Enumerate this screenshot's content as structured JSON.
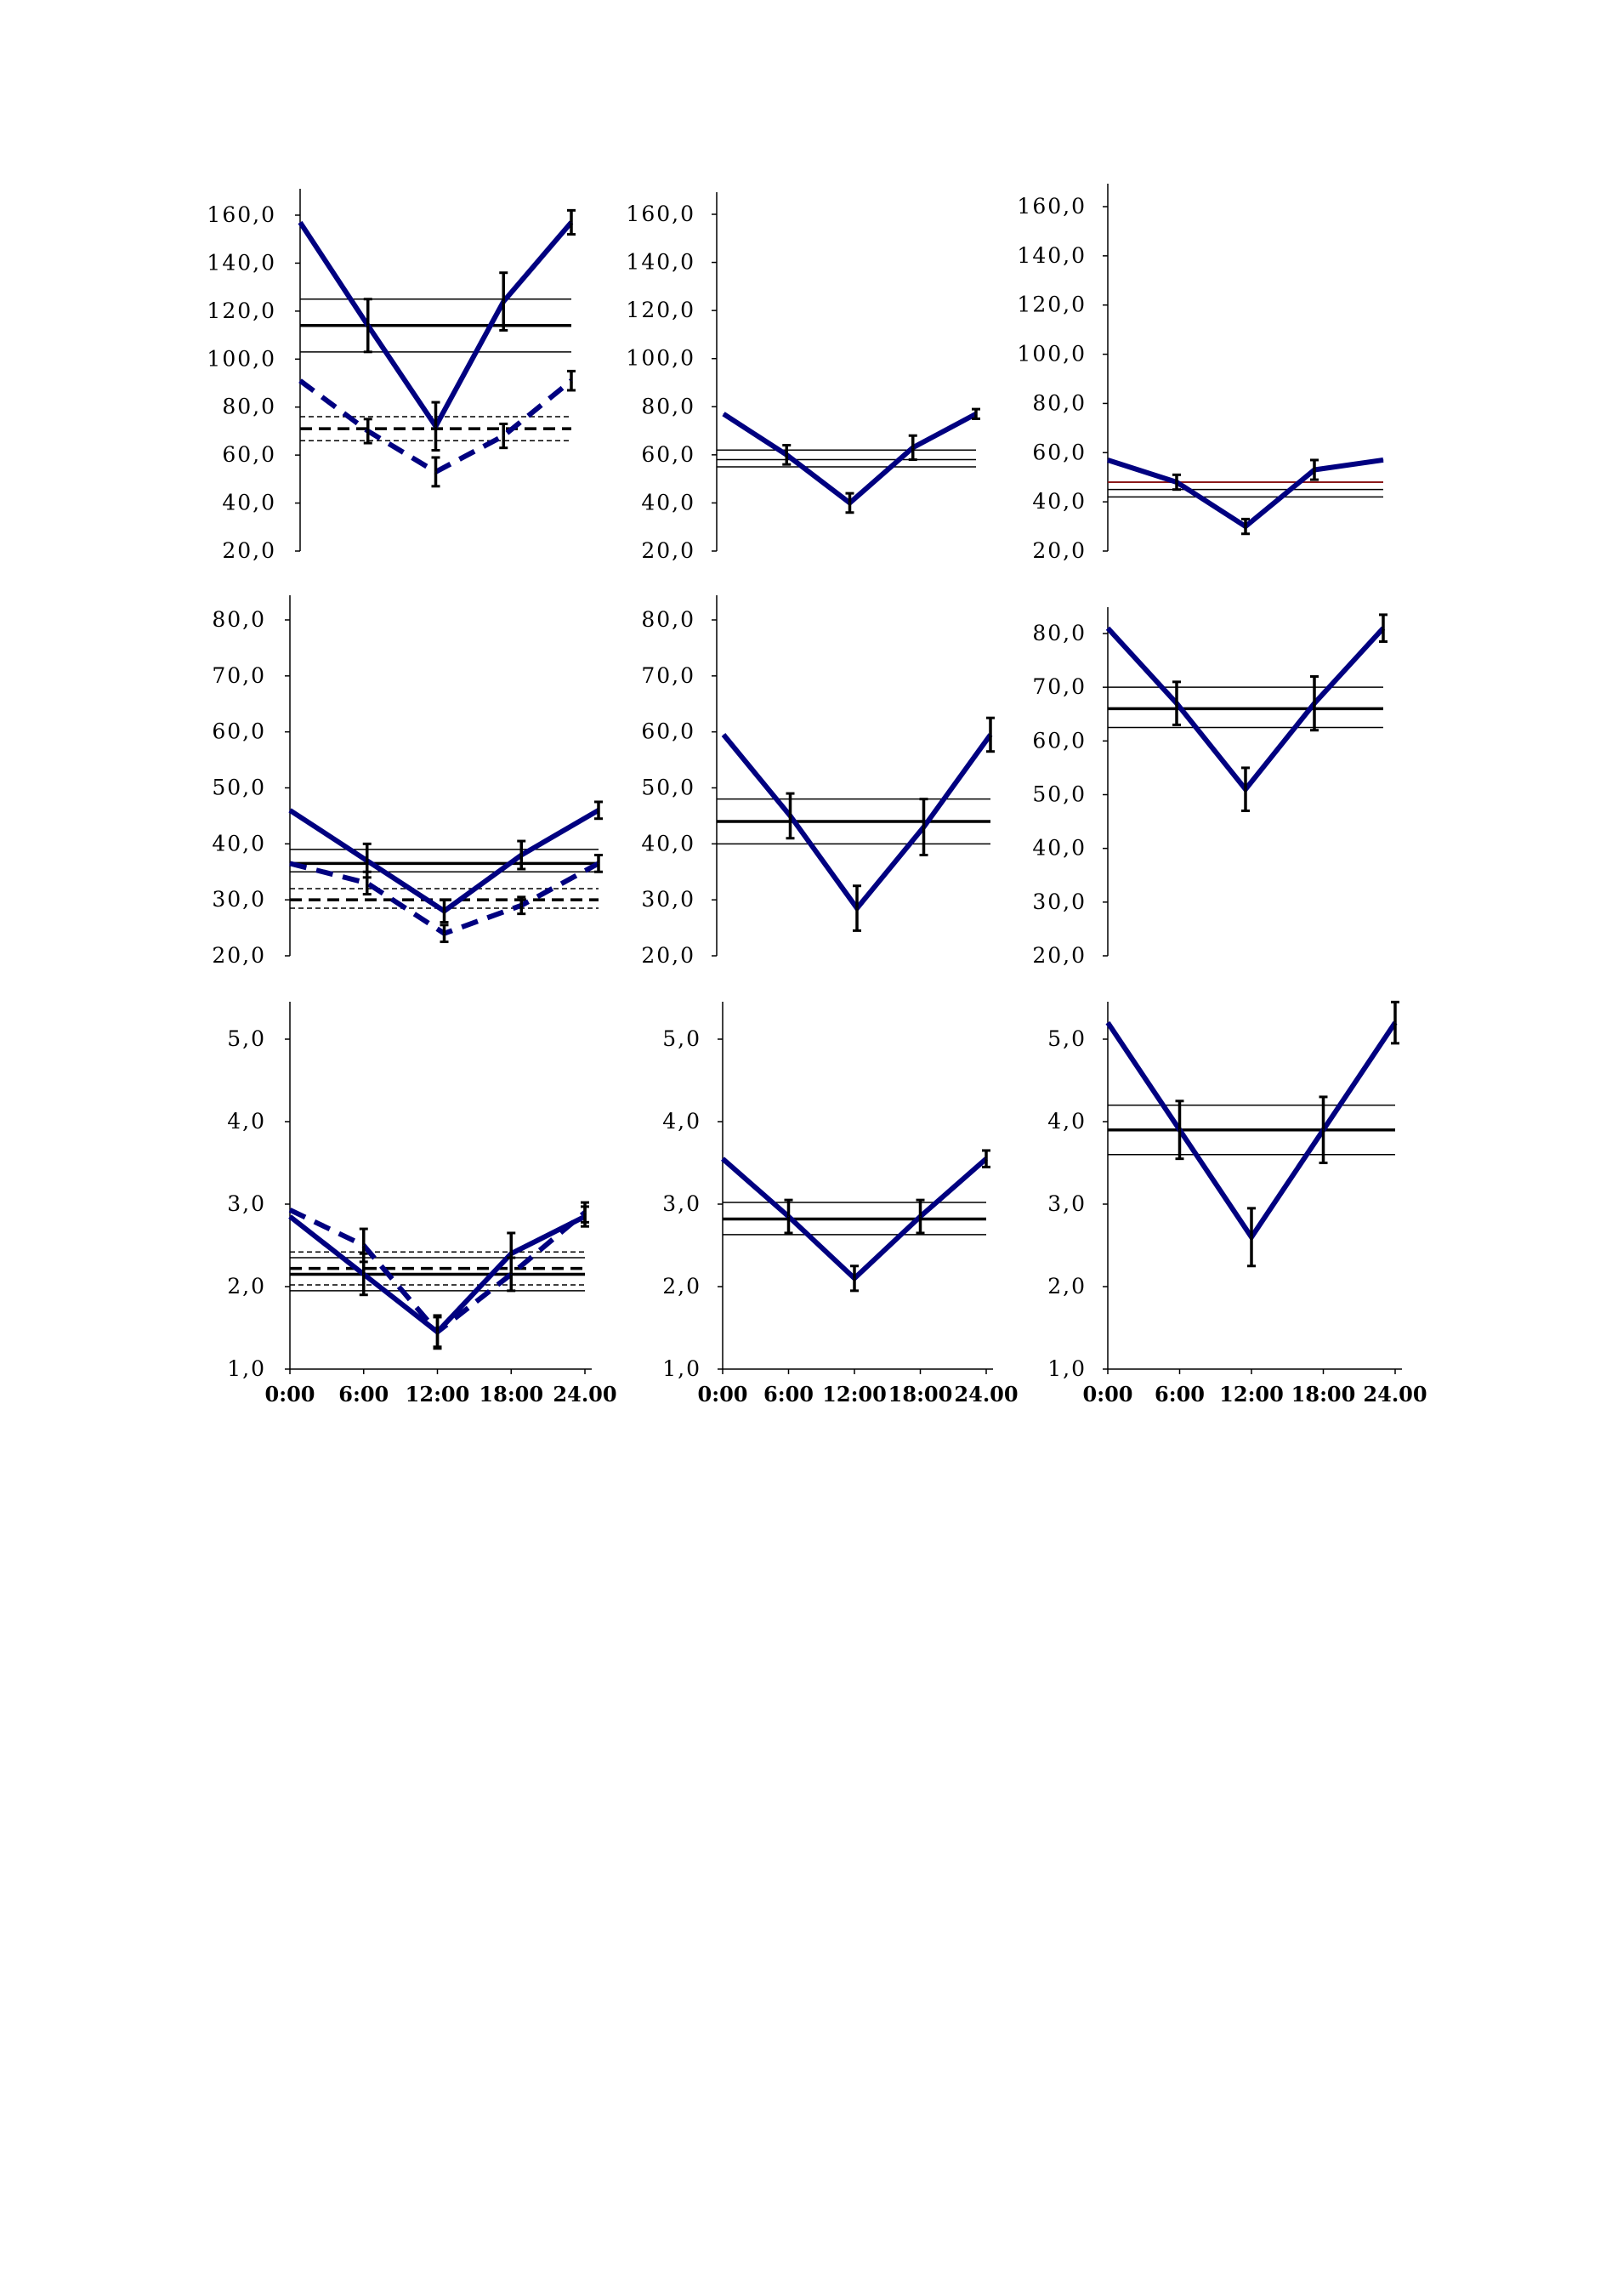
{
  "colors": {
    "series": "#000080",
    "axis": "#000000",
    "reference": "#000000",
    "reference_red": "#8b1a1a"
  },
  "chart_data": [
    {
      "type": "line",
      "x_ticks": [],
      "x": [
        0,
        6,
        12,
        18,
        24
      ],
      "ylim": [
        20,
        160
      ],
      "y_ticks": [
        "20,0",
        "40,0",
        "60,0",
        "80,0",
        "100,0",
        "120,0",
        "140,0",
        "160,0"
      ],
      "y_tick_values": [
        20,
        40,
        60,
        80,
        100,
        120,
        140,
        160
      ],
      "series": [
        {
          "style": "solid",
          "values": [
            157,
            114,
            72,
            124,
            157
          ],
          "errors": [
            0,
            11,
            10,
            12,
            5
          ]
        },
        {
          "style": "dashed",
          "values": [
            91,
            70,
            53,
            68,
            91
          ],
          "errors": [
            0,
            5,
            6,
            5,
            4
          ]
        }
      ],
      "reference_lines": [
        {
          "style": "bold",
          "y": 114
        },
        {
          "style": "thin",
          "y": 125
        },
        {
          "style": "thin",
          "y": 103
        },
        {
          "style": "bold-dashed",
          "y": 71
        },
        {
          "style": "thin-dashed",
          "y": 76
        },
        {
          "style": "thin-dashed",
          "y": 66
        }
      ]
    },
    {
      "type": "line",
      "x_ticks": [],
      "x": [
        0,
        6,
        12,
        18,
        24
      ],
      "ylim": [
        20,
        160
      ],
      "y_ticks": [
        "20,0",
        "40,0",
        "60,0",
        "80,0",
        "100,0",
        "120,0",
        "140,0",
        "160,0"
      ],
      "y_tick_values": [
        20,
        40,
        60,
        80,
        100,
        120,
        140,
        160
      ],
      "series": [
        {
          "style": "solid",
          "values": [
            77,
            60,
            40,
            63,
            77
          ],
          "errors": [
            0,
            4,
            4,
            5,
            2
          ]
        }
      ],
      "reference_lines": [
        {
          "style": "thin",
          "y": 62
        },
        {
          "style": "thin",
          "y": 58
        },
        {
          "style": "thin",
          "y": 55
        }
      ]
    },
    {
      "type": "line",
      "x_ticks": [],
      "x": [
        0,
        6,
        12,
        18,
        24
      ],
      "ylim": [
        20,
        160
      ],
      "y_ticks": [
        "20,0",
        "40,0",
        "60,0",
        "80,0",
        "100,0",
        "120,0",
        "140,0",
        "160,0"
      ],
      "y_tick_values": [
        20,
        40,
        60,
        80,
        100,
        120,
        140,
        160
      ],
      "series": [
        {
          "style": "solid",
          "values": [
            57,
            48,
            30,
            53,
            57
          ],
          "errors": [
            0,
            3,
            3,
            4,
            0
          ]
        }
      ],
      "reference_lines": [
        {
          "style": "thin-red",
          "y": 48
        },
        {
          "style": "thin",
          "y": 45
        },
        {
          "style": "thin",
          "y": 42
        }
      ]
    },
    {
      "type": "line",
      "x_ticks": [],
      "x": [
        0,
        6,
        12,
        18,
        24
      ],
      "ylim": [
        20,
        80
      ],
      "y_ticks": [
        "20,0",
        "30,0",
        "40,0",
        "50,0",
        "60,0",
        "70,0",
        "80,0"
      ],
      "y_tick_values": [
        20,
        30,
        40,
        50,
        60,
        70,
        80
      ],
      "series": [
        {
          "style": "solid",
          "values": [
            46,
            37,
            28,
            38,
            46
          ],
          "errors": [
            0,
            3,
            2,
            2.5,
            1.5
          ]
        },
        {
          "style": "dashed",
          "values": [
            36.5,
            33,
            24,
            29,
            36.5
          ],
          "errors": [
            0,
            2,
            1.5,
            1.5,
            1.5
          ]
        }
      ],
      "reference_lines": [
        {
          "style": "bold",
          "y": 36.5
        },
        {
          "style": "thin",
          "y": 39
        },
        {
          "style": "thin",
          "y": 35
        },
        {
          "style": "bold-dashed",
          "y": 30
        },
        {
          "style": "thin-dashed",
          "y": 32
        },
        {
          "style": "thin-dashed",
          "y": 28.5
        }
      ]
    },
    {
      "type": "line",
      "x_ticks": [],
      "x": [
        0,
        6,
        12,
        18,
        24
      ],
      "ylim": [
        20,
        80
      ],
      "y_ticks": [
        "20,0",
        "30,0",
        "40,0",
        "50,0",
        "60,0",
        "70,0",
        "80,0"
      ],
      "y_tick_values": [
        20,
        30,
        40,
        50,
        60,
        70,
        80
      ],
      "series": [
        {
          "style": "solid",
          "values": [
            59.5,
            45,
            28.5,
            43,
            59.5
          ],
          "errors": [
            0,
            4,
            4,
            5,
            3
          ]
        }
      ],
      "reference_lines": [
        {
          "style": "bold",
          "y": 44
        },
        {
          "style": "thin",
          "y": 48
        },
        {
          "style": "thin",
          "y": 40
        }
      ]
    },
    {
      "type": "line",
      "x_ticks": [],
      "x": [
        0,
        6,
        12,
        18,
        24
      ],
      "ylim": [
        20,
        80
      ],
      "y_ticks": [
        "20,0",
        "30,0",
        "40,0",
        "50,0",
        "60,0",
        "70,0",
        "80,0"
      ],
      "y_tick_values": [
        20,
        30,
        40,
        50,
        60,
        70,
        80
      ],
      "series": [
        {
          "style": "solid",
          "values": [
            81,
            67,
            51,
            67,
            81
          ],
          "errors": [
            0,
            4,
            4,
            5,
            2.5
          ]
        }
      ],
      "reference_lines": [
        {
          "style": "bold",
          "y": 66
        },
        {
          "style": "thin",
          "y": 70
        },
        {
          "style": "thin",
          "y": 62.5
        }
      ]
    },
    {
      "type": "line",
      "x_ticks": [
        "0:00",
        "6:00",
        "12:00",
        "18:00",
        "24.00"
      ],
      "x": [
        0,
        6,
        12,
        18,
        24
      ],
      "ylim": [
        1,
        5.5
      ],
      "y_ticks": [
        "1,0",
        "2,0",
        "3,0",
        "4,0",
        "5,0"
      ],
      "y_tick_values": [
        1,
        2,
        3,
        4,
        5
      ],
      "series": [
        {
          "style": "solid",
          "values": [
            2.85,
            2.15,
            1.45,
            2.4,
            2.85
          ],
          "errors": [
            0,
            0.25,
            0.2,
            0.25,
            0.12
          ]
        },
        {
          "style": "dashed",
          "values": [
            2.93,
            2.5,
            1.45,
            2.15,
            2.9
          ],
          "errors": [
            0,
            0.2,
            0.18,
            0.2,
            0.12
          ]
        }
      ],
      "reference_lines": [
        {
          "style": "bold",
          "y": 2.15
        },
        {
          "style": "thin",
          "y": 2.35
        },
        {
          "style": "thin",
          "y": 1.95
        },
        {
          "style": "bold-dashed",
          "y": 2.22
        },
        {
          "style": "thin-dashed",
          "y": 2.42
        },
        {
          "style": "thin-dashed",
          "y": 2.02
        }
      ]
    },
    {
      "type": "line",
      "x_ticks": [
        "0:00",
        "6:00",
        "12:00",
        "18:00",
        "24.00"
      ],
      "x": [
        0,
        6,
        12,
        18,
        24
      ],
      "ylim": [
        1,
        5.5
      ],
      "y_ticks": [
        "1,0",
        "2,0",
        "3,0",
        "4,0",
        "5,0"
      ],
      "y_tick_values": [
        1,
        2,
        3,
        4,
        5
      ],
      "series": [
        {
          "style": "solid",
          "values": [
            3.55,
            2.85,
            2.1,
            2.85,
            3.55
          ],
          "errors": [
            0,
            0.2,
            0.15,
            0.2,
            0.1
          ]
        }
      ],
      "reference_lines": [
        {
          "style": "bold",
          "y": 2.82
        },
        {
          "style": "thin",
          "y": 3.02
        },
        {
          "style": "thin",
          "y": 2.63
        }
      ]
    },
    {
      "type": "line",
      "x_ticks": [
        "0:00",
        "6:00",
        "12:00",
        "18:00",
        "24.00"
      ],
      "x": [
        0,
        6,
        12,
        18,
        24
      ],
      "ylim": [
        1,
        5.5
      ],
      "y_ticks": [
        "1,0",
        "2,0",
        "3,0",
        "4,0",
        "5,0"
      ],
      "y_tick_values": [
        1,
        2,
        3,
        4,
        5
      ],
      "series": [
        {
          "style": "solid",
          "values": [
            5.2,
            3.9,
            2.6,
            3.9,
            5.2
          ],
          "errors": [
            0,
            0.35,
            0.35,
            0.4,
            0.25
          ]
        }
      ],
      "reference_lines": [
        {
          "style": "bold",
          "y": 3.9
        },
        {
          "style": "thin",
          "y": 4.2
        },
        {
          "style": "thin",
          "y": 3.6
        }
      ]
    }
  ]
}
